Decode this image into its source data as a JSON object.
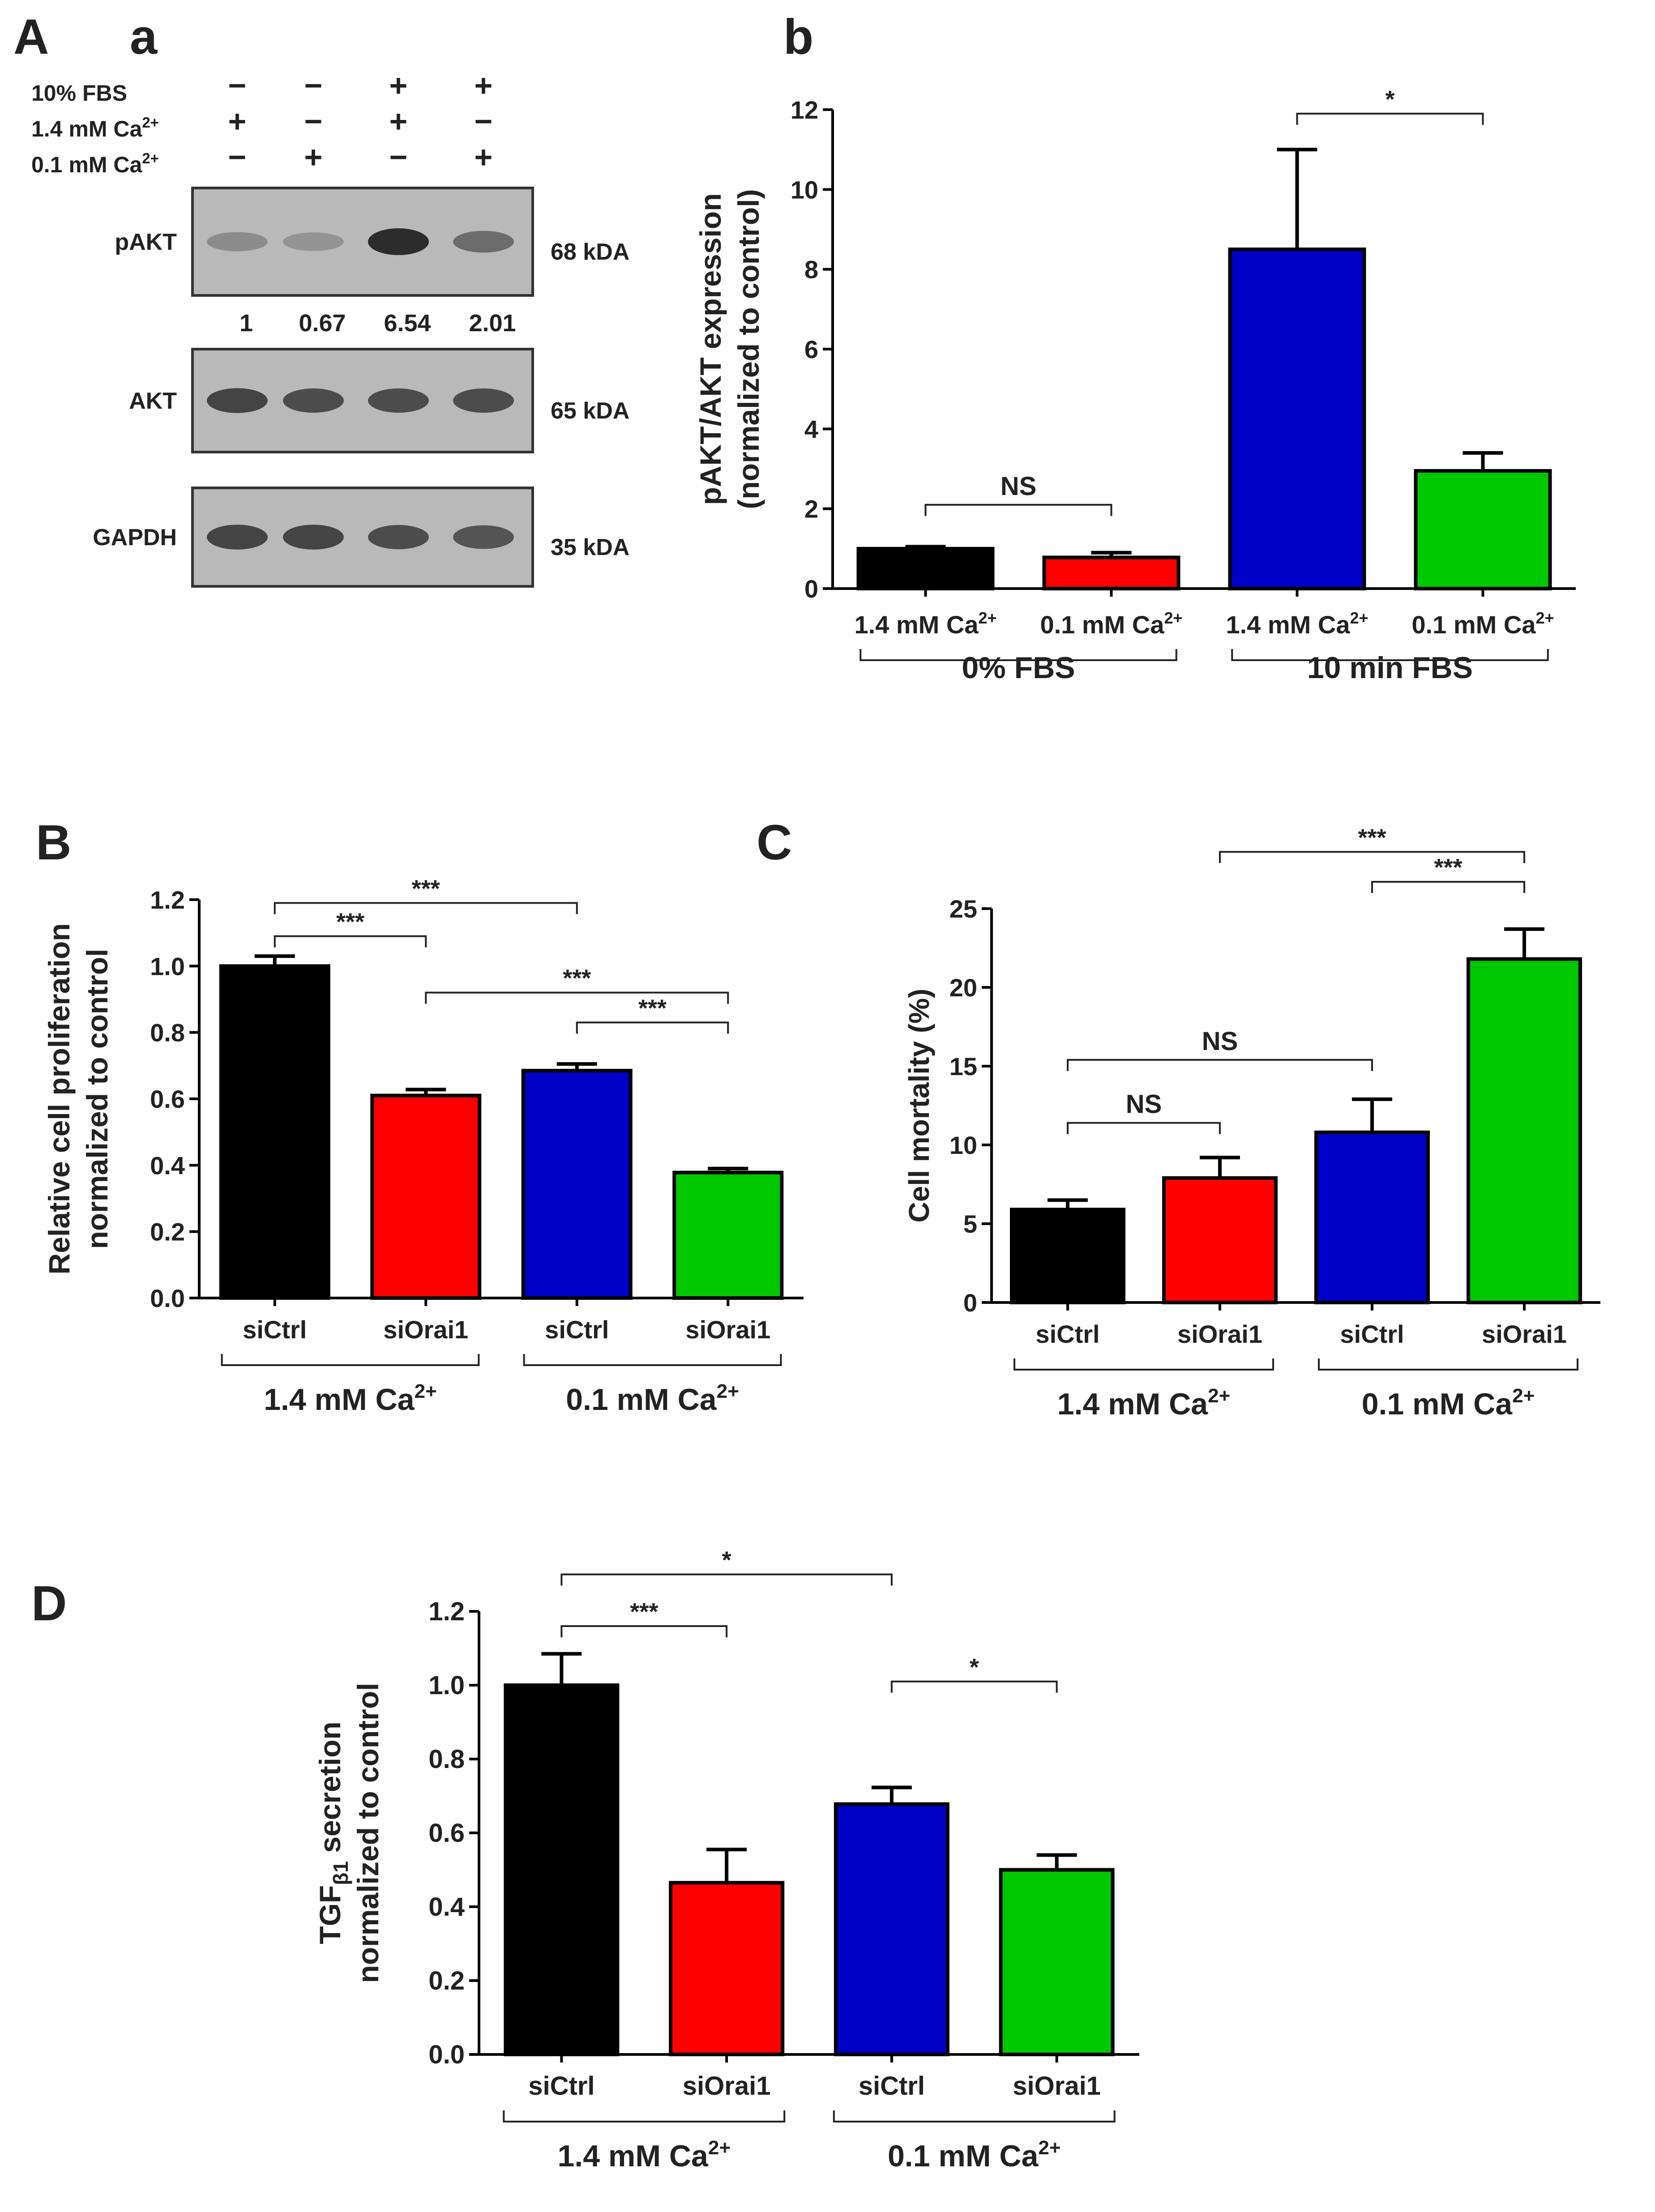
{
  "colors": {
    "black": "#000000",
    "red": "#ff0000",
    "blue": "#0000c8",
    "green": "#00c800"
  },
  "panel_labels": {
    "A": "A",
    "a": "a",
    "b": "b",
    "B": "B",
    "C": "C",
    "D": "D"
  },
  "western_blot": {
    "conditions": [
      "10% FBS",
      "1.4 mM Ca2+",
      "0.1 mM Ca2+"
    ],
    "signs": [
      [
        "-",
        "-",
        "+",
        "+"
      ],
      [
        "+",
        "-",
        "+",
        "-"
      ],
      [
        "-",
        "+",
        "-",
        "+"
      ]
    ],
    "bands": [
      {
        "name": "pAKT",
        "size": "68 kDA",
        "intensity": [
          0.25,
          0.2,
          0.85,
          0.45
        ]
      },
      {
        "name": "AKT",
        "size": "65 kDA",
        "intensity": [
          0.7,
          0.65,
          0.65,
          0.65
        ]
      },
      {
        "name": "GAPDH",
        "size": "35 kDA",
        "intensity": [
          0.7,
          0.7,
          0.65,
          0.6
        ]
      }
    ],
    "quant": [
      "1",
      "0.67",
      "6.54",
      "2.01"
    ]
  },
  "chart_data": [
    {
      "id": "Ab",
      "type": "bar",
      "ylabel": "pAKT/AKT expression",
      "ylabel2": "(normalized to control)",
      "ylim": [
        0,
        12
      ],
      "yticks": [
        0,
        2,
        4,
        6,
        8,
        10,
        12
      ],
      "categories": [
        "1.4 mM Ca2+",
        "0.1 mM Ca2+",
        "1.4 mM Ca2+",
        "0.1 mM Ca2+"
      ],
      "values": [
        1.0,
        0.78,
        8.5,
        2.95
      ],
      "errors": [
        0.05,
        0.12,
        2.5,
        0.45
      ],
      "colors": [
        "black",
        "red",
        "blue",
        "green"
      ],
      "groups": [
        {
          "label": "0% FBS",
          "from": 0,
          "to": 1
        },
        {
          "label": "10 min FBS",
          "from": 2,
          "to": 3
        }
      ],
      "significance": [
        {
          "from": 0,
          "to": 1,
          "label": "NS",
          "y": 2.1
        },
        {
          "from": 2,
          "to": 3,
          "label": "*",
          "y": 11.9
        }
      ]
    },
    {
      "id": "B",
      "type": "bar",
      "ylabel": "Relative cell proliferation",
      "ylabel2": "normalized to control",
      "ylim": [
        0,
        1.2
      ],
      "yticks": [
        "0.0",
        "0.2",
        "0.4",
        "0.6",
        "0.8",
        "1.0",
        "1.2"
      ],
      "categories": [
        "siCtrl",
        "siOrai1",
        "siCtrl",
        "siOrai1"
      ],
      "values": [
        1.0,
        0.61,
        0.685,
        0.378
      ],
      "errors": [
        0.03,
        0.018,
        0.02,
        0.012
      ],
      "colors": [
        "black",
        "red",
        "blue",
        "green"
      ],
      "groups": [
        {
          "label": "1.4 mM Ca2+",
          "from": 0,
          "to": 1
        },
        {
          "label": "0.1 mM Ca2+",
          "from": 2,
          "to": 3
        }
      ],
      "significance": [
        {
          "from": 0,
          "to": 1,
          "label": "***",
          "y": 1.09
        },
        {
          "from": 0,
          "to": 2,
          "label": "***",
          "y": 1.19
        },
        {
          "from": 1,
          "to": 3,
          "label": "***",
          "y": 0.92
        },
        {
          "from": 2,
          "to": 3,
          "label": "***",
          "y": 0.83
        }
      ]
    },
    {
      "id": "C",
      "type": "bar",
      "ylabel": "Cell mortality (%)",
      "ylabel2": "",
      "ylim": [
        0,
        25
      ],
      "yticks": [
        0,
        5,
        10,
        15,
        20,
        25
      ],
      "categories": [
        "siCtrl",
        "siOrai1",
        "siCtrl",
        "siOrai1"
      ],
      "values": [
        5.9,
        7.9,
        10.8,
        21.8
      ],
      "errors": [
        0.6,
        1.3,
        2.1,
        1.9
      ],
      "colors": [
        "black",
        "red",
        "blue",
        "green"
      ],
      "groups": [
        {
          "label": "1.4 mM Ca2+",
          "from": 0,
          "to": 1
        },
        {
          "label": "0.1 mM Ca2+",
          "from": 2,
          "to": 3
        }
      ],
      "significance": [
        {
          "from": 0,
          "to": 1,
          "label": "NS",
          "y": 11.4
        },
        {
          "from": 0,
          "to": 2,
          "label": "NS",
          "y": 15.4
        },
        {
          "from": 2,
          "to": 3,
          "label": "***",
          "y": 26.7
        },
        {
          "from": 1,
          "to": 3,
          "label": "***",
          "y": 28.6
        }
      ]
    },
    {
      "id": "D",
      "type": "bar",
      "ylabel": "TGFβ1 secretion",
      "ylabel2": "normalized to control",
      "ylim": [
        0,
        1.2
      ],
      "yticks": [
        "0.0",
        "0.2",
        "0.4",
        "0.6",
        "0.8",
        "1.0",
        "1.2"
      ],
      "categories": [
        "siCtrl",
        "siOrai1",
        "siCtrl",
        "siOrai1"
      ],
      "values": [
        1.0,
        0.465,
        0.678,
        0.5
      ],
      "errors": [
        0.085,
        0.09,
        0.045,
        0.04
      ],
      "colors": [
        "black",
        "red",
        "blue",
        "green"
      ],
      "groups": [
        {
          "label": "1.4 mM Ca2+",
          "from": 0,
          "to": 1
        },
        {
          "label": "0.1 mM Ca2+",
          "from": 2,
          "to": 3
        }
      ],
      "significance": [
        {
          "from": 0,
          "to": 1,
          "label": "***",
          "y": 1.16
        },
        {
          "from": 0,
          "to": 2,
          "label": "*",
          "y": 1.3
        },
        {
          "from": 2,
          "to": 3,
          "label": "*",
          "y": 1.01
        }
      ]
    }
  ]
}
